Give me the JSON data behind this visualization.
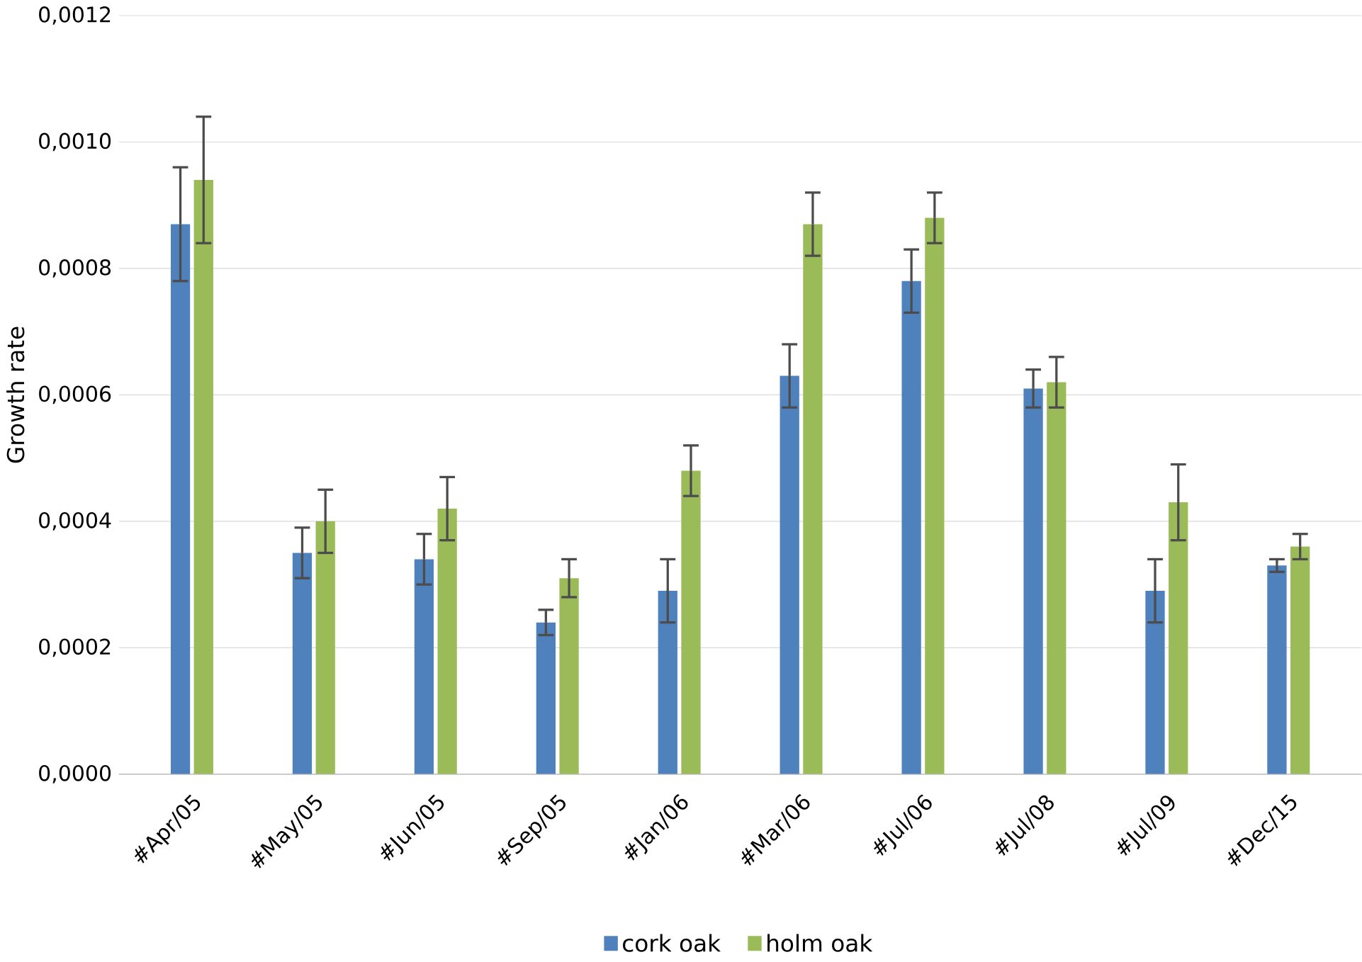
{
  "chart_data": {
    "type": "bar",
    "ylabel": "Growth rate",
    "categories": [
      "#Apr/05",
      "#May/05",
      "#Jun/05",
      "#Sep/05",
      "#Jan/06",
      "#Mar/06",
      "#Jul/06",
      "#Jul/08",
      "#Jul/09",
      "#Dec/15"
    ],
    "series": [
      {
        "name": "cork oak",
        "color": "#4f81bd",
        "values": [
          0.00087,
          0.00035,
          0.00034,
          0.00024,
          0.00029,
          0.00063,
          0.00078,
          0.00061,
          0.00029,
          0.00033
        ],
        "errors": [
          9e-05,
          4e-05,
          4e-05,
          2e-05,
          5e-05,
          5e-05,
          5e-05,
          3e-05,
          5e-05,
          1e-05
        ]
      },
      {
        "name": "holm oak",
        "color": "#9bbb59",
        "values": [
          0.00094,
          0.0004,
          0.00042,
          0.00031,
          0.00048,
          0.00087,
          0.00088,
          0.00062,
          0.00043,
          0.00036
        ],
        "errors": [
          0.0001,
          5e-05,
          5e-05,
          3e-05,
          4e-05,
          5e-05,
          4e-05,
          4e-05,
          6e-05,
          2e-05
        ]
      }
    ],
    "ylim": [
      0,
      0.0012
    ],
    "yticks": [
      {
        "value": 0,
        "label": "0,0000"
      },
      {
        "value": 0.0002,
        "label": "0,0002"
      },
      {
        "value": 0.0004,
        "label": "0,0004"
      },
      {
        "value": 0.0006,
        "label": "0,0006"
      },
      {
        "value": 0.0008,
        "label": "0,0008"
      },
      {
        "value": 0.001,
        "label": "0,0010"
      },
      {
        "value": 0.0012,
        "label": "0,0012"
      }
    ],
    "grid": "y",
    "legend": "bottom"
  }
}
